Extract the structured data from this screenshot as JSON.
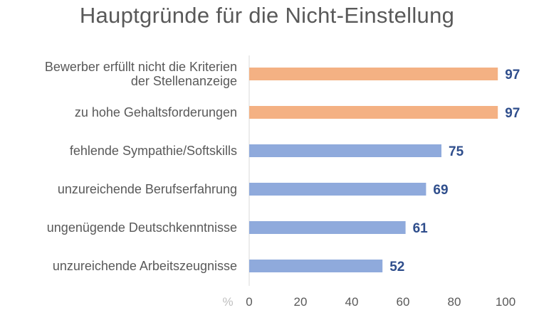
{
  "chart_data": {
    "type": "bar",
    "orientation": "horizontal",
    "title": "Hauptgründe für die Nicht-Einstellung",
    "unit_label": "%",
    "xlim": [
      0,
      100
    ],
    "x_ticks": [
      0,
      20,
      40,
      60,
      80,
      100
    ],
    "categories": [
      [
        "Bewerber erfüllt nicht die Kriterien",
        "der Stellenanzeige"
      ],
      [
        "zu hohe Gehaltsforderungen"
      ],
      [
        "fehlende Sympathie/Softskills"
      ],
      [
        "unzureichende Berufserfahrung"
      ],
      [
        "ungenügende Deutschkenntnisse"
      ],
      [
        "unzureichende Arbeitszeugnisse"
      ]
    ],
    "values": [
      97,
      97,
      75,
      69,
      61,
      52
    ],
    "bar_colors": [
      "#F4B183",
      "#F4B183",
      "#8FAADC",
      "#8FAADC",
      "#8FAADC",
      "#8FAADC"
    ],
    "value_label_color": "#2F4E8C"
  }
}
